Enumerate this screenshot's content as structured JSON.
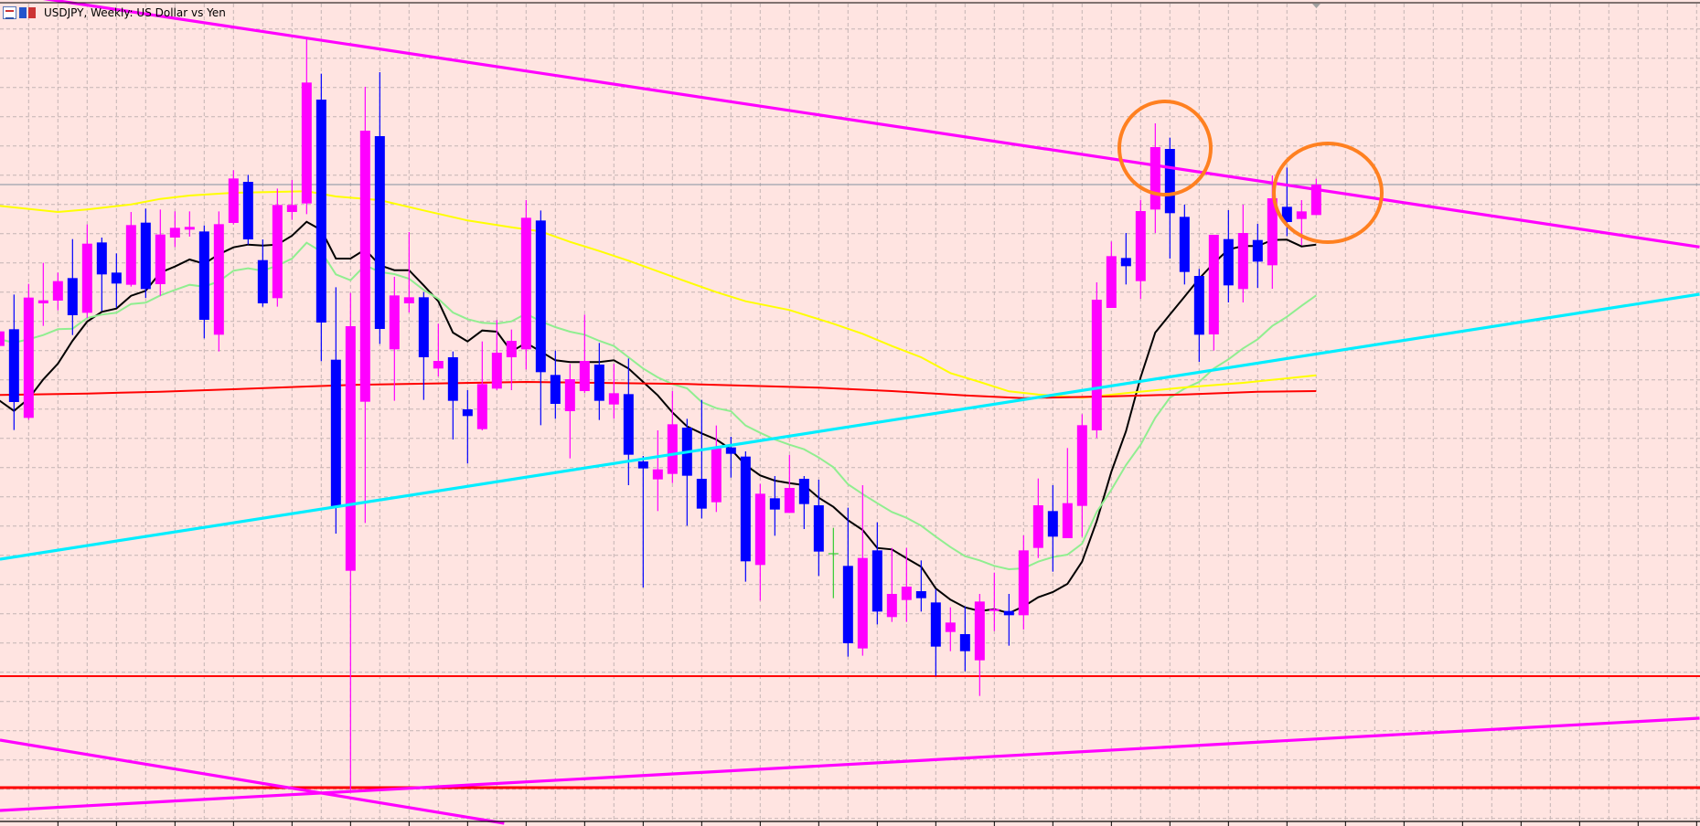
{
  "window": {
    "title": "USDJPY, Weekly:  US Dollar vs Yen",
    "icons": [
      "chart-window-icon",
      "books-icon"
    ]
  },
  "colors": {
    "background": "#ffe4e1",
    "grid": "#c4b4b4",
    "bull_candle": "#ff00ff",
    "bear_candle": "#0000ff",
    "doji_candle": "#32cd32",
    "upper_trendline": "#ff00ff",
    "cyan_trendline": "#00eeff",
    "support_line": "#ff0000",
    "current_price_line": "#8090a0",
    "annotation": "#ff8020"
  },
  "chart_data": {
    "type": "candlestick",
    "symbol": "USDJPY",
    "timeframe": "Weekly",
    "title": "USDJPY, Weekly:  US Dollar vs Yen",
    "grid": true,
    "x_index_start": -1,
    "candles_ohlc": [
      [
        151.64,
        152.21,
        151.58,
        152.12
      ],
      [
        152.19,
        153.33,
        148.88,
        149.8
      ],
      [
        149.28,
        153.68,
        149.22,
        153.23
      ],
      [
        153.04,
        154.37,
        152.3,
        153.14
      ],
      [
        153.13,
        154.05,
        152.81,
        153.77
      ],
      [
        153.87,
        155.15,
        152.0,
        152.65
      ],
      [
        152.73,
        155.63,
        152.56,
        155.0
      ],
      [
        155.04,
        155.2,
        152.79,
        153.99
      ],
      [
        154.05,
        154.68,
        152.9,
        153.69
      ],
      [
        153.65,
        156.04,
        153.59,
        155.61
      ],
      [
        155.69,
        156.15,
        153.22,
        153.51
      ],
      [
        153.67,
        156.12,
        153.29,
        155.3
      ],
      [
        155.2,
        156.06,
        154.89,
        155.52
      ],
      [
        155.46,
        156.06,
        155.23,
        155.55
      ],
      [
        155.4,
        155.6,
        151.89,
        152.5
      ],
      [
        152.01,
        156.06,
        151.46,
        155.64
      ],
      [
        155.68,
        157.41,
        155.63,
        157.14
      ],
      [
        157.03,
        157.26,
        154.97,
        155.14
      ],
      [
        154.46,
        155.14,
        152.93,
        153.04
      ],
      [
        153.21,
        156.81,
        152.93,
        156.27
      ],
      [
        156.04,
        157.09,
        155.78,
        156.27
      ],
      [
        156.32,
        161.76,
        155.97,
        160.29
      ],
      [
        159.73,
        160.58,
        151.14,
        152.41
      ],
      [
        151.19,
        153.57,
        145.48,
        146.35
      ],
      [
        144.26,
        153.38,
        137.02,
        152.29
      ],
      [
        149.81,
        160.15,
        145.83,
        158.71
      ],
      [
        158.53,
        160.63,
        151.71,
        152.2
      ],
      [
        151.53,
        153.91,
        149.84,
        153.3
      ],
      [
        153.04,
        155.38,
        152.74,
        153.24
      ],
      [
        153.24,
        153.41,
        149.87,
        151.27
      ],
      [
        150.9,
        152.37,
        150.64,
        151.15
      ],
      [
        151.27,
        151.46,
        148.57,
        149.84
      ],
      [
        149.56,
        150.19,
        147.78,
        149.34
      ],
      [
        148.91,
        151.79,
        148.87,
        150.39
      ],
      [
        150.24,
        152.49,
        150.19,
        151.42
      ],
      [
        151.27,
        152.18,
        150.19,
        151.81
      ],
      [
        151.53,
        156.43,
        150.87,
        155.85
      ],
      [
        155.76,
        156.09,
        149.04,
        150.78
      ],
      [
        150.69,
        151.49,
        149.25,
        149.74
      ],
      [
        149.5,
        151.05,
        147.95,
        150.55
      ],
      [
        150.16,
        152.67,
        150.09,
        151.15
      ],
      [
        151.03,
        151.74,
        149.21,
        149.84
      ],
      [
        149.72,
        151.05,
        149.25,
        150.09
      ],
      [
        150.06,
        151.23,
        147.07,
        148.07
      ],
      [
        147.85,
        148.03,
        143.71,
        147.62
      ],
      [
        147.26,
        148.87,
        146.22,
        147.59
      ],
      [
        147.44,
        150.16,
        147.14,
        149.07
      ],
      [
        148.96,
        149.25,
        145.74,
        147.38
      ],
      [
        147.28,
        149.87,
        145.98,
        146.3
      ],
      [
        146.51,
        149.03,
        146.19,
        148.28
      ],
      [
        148.31,
        148.66,
        147.32,
        148.1
      ],
      [
        148.01,
        148.18,
        143.9,
        144.57
      ],
      [
        144.45,
        147.11,
        143.28,
        146.79
      ],
      [
        146.64,
        147.37,
        145.41,
        146.27
      ],
      [
        146.16,
        148.06,
        146.16,
        146.98
      ],
      [
        147.28,
        147.37,
        145.63,
        146.45
      ],
      [
        146.41,
        147.25,
        144.09,
        144.89
      ],
      [
        144.82,
        145.67,
        143.36,
        144.82
      ],
      [
        144.42,
        146.33,
        141.44,
        141.88
      ],
      [
        141.71,
        147.07,
        141.47,
        144.68
      ],
      [
        144.93,
        145.85,
        142.5,
        142.92
      ],
      [
        142.74,
        145.01,
        142.58,
        143.5
      ],
      [
        143.3,
        145.01,
        142.58,
        143.74
      ],
      [
        143.59,
        144.6,
        142.92,
        143.36
      ],
      [
        143.22,
        143.65,
        140.81,
        141.77
      ],
      [
        142.25,
        143.06,
        141.62,
        142.56
      ],
      [
        142.18,
        143.09,
        140.96,
        141.62
      ],
      [
        141.32,
        143.5,
        140.15,
        143.25
      ],
      [
        142.94,
        144.2,
        142.28,
        143.0
      ],
      [
        142.94,
        143.5,
        141.8,
        142.8
      ],
      [
        142.8,
        145.42,
        142.33,
        144.93
      ],
      [
        145.01,
        147.29,
        144.68,
        146.41
      ],
      [
        146.22,
        147.07,
        144.23,
        145.38
      ],
      [
        145.33,
        148.29,
        145.33,
        146.48
      ],
      [
        146.39,
        149.4,
        145.38,
        149.04
      ],
      [
        148.87,
        153.73,
        148.62,
        153.16
      ],
      [
        152.89,
        155.07,
        152.89,
        154.59
      ],
      [
        154.53,
        155.35,
        153.66,
        154.26
      ],
      [
        153.77,
        156.44,
        153.19,
        156.07
      ],
      [
        156.12,
        158.95,
        155.35,
        158.17
      ],
      [
        158.11,
        158.48,
        154.51,
        156.0
      ],
      [
        155.88,
        156.28,
        153.66,
        154.07
      ],
      [
        153.94,
        154.17,
        151.12,
        152.01
      ],
      [
        152.02,
        155.29,
        151.49,
        155.29
      ],
      [
        155.15,
        156.1,
        153.07,
        153.63
      ],
      [
        153.51,
        156.28,
        153.07,
        155.35
      ],
      [
        155.12,
        155.65,
        153.55,
        154.41
      ],
      [
        154.29,
        157.24,
        153.52,
        156.49
      ],
      [
        156.21,
        157.5,
        155.25,
        155.71
      ],
      [
        155.81,
        156.43,
        154.95,
        156.06
      ],
      [
        155.94,
        157.13,
        155.94,
        156.94
      ]
    ],
    "moving_averages": [
      {
        "color": "#000000",
        "values": [
          149.85,
          149.51,
          149.91,
          150.54,
          151.06,
          151.81,
          152.44,
          152.76,
          152.87,
          153.29,
          153.45,
          154.05,
          154.25,
          154.48,
          154.34,
          154.65,
          154.88,
          154.97,
          154.94,
          154.97,
          155.26,
          155.72,
          155.45,
          154.51,
          154.51,
          154.81,
          154.29,
          154.13,
          154.13,
          153.63,
          153.11,
          152.08,
          151.79,
          152.15,
          152.11,
          151.46,
          151.74,
          151.46,
          151.17,
          151.11,
          151.11,
          151.11,
          151.17,
          150.9,
          150.46,
          150.02,
          149.46,
          149.0,
          148.77,
          148.57,
          148.25,
          147.73,
          147.39,
          147.22,
          147.14,
          147.07,
          146.66,
          146.36,
          145.92,
          145.6,
          145.01,
          144.96,
          144.67,
          144.39,
          143.68,
          143.31,
          143.06,
          142.94,
          143.0,
          142.87,
          143.09,
          143.39,
          143.56,
          143.83,
          144.56,
          145.89,
          147.51,
          148.84,
          150.61,
          152.08,
          152.67,
          153.26,
          153.85,
          154.36,
          154.81,
          154.92,
          154.92,
          155.12,
          155.13,
          154.91,
          154.97
        ]
      },
      {
        "color": "#90ee90",
        "values": [
          151.86,
          151.75,
          151.86,
          152.0,
          152.19,
          152.21,
          152.56,
          152.67,
          152.73,
          153.02,
          153.06,
          153.3,
          153.48,
          153.65,
          153.59,
          153.76,
          154.11,
          154.19,
          154.11,
          154.28,
          154.51,
          155.03,
          154.74,
          153.99,
          153.8,
          154.29,
          154.07,
          154.0,
          153.85,
          153.48,
          153.19,
          152.74,
          152.52,
          152.4,
          152.37,
          152.45,
          152.7,
          152.45,
          152.26,
          152.11,
          152.01,
          151.81,
          151.64,
          151.27,
          150.9,
          150.61,
          150.39,
          150.25,
          149.8,
          149.6,
          149.5,
          149.03,
          148.79,
          148.57,
          148.4,
          148.25,
          147.98,
          147.66,
          147.1,
          146.78,
          146.48,
          146.19,
          146.0,
          145.74,
          145.38,
          145.04,
          144.74,
          144.6,
          144.42,
          144.31,
          144.34,
          144.56,
          144.71,
          144.79,
          145.15,
          146.19,
          146.92,
          147.73,
          148.4,
          149.28,
          149.94,
          150.24,
          150.46,
          150.9,
          151.2,
          151.56,
          151.86,
          152.3,
          152.6,
          152.96,
          153.3
        ]
      },
      {
        "color": "#ffff00",
        "points": [
          [
            -1,
            156.24
          ],
          [
            3,
            156.04
          ],
          [
            5,
            156.12
          ],
          [
            8,
            156.29
          ],
          [
            10,
            156.47
          ],
          [
            12,
            156.58
          ],
          [
            15,
            156.67
          ],
          [
            18,
            156.7
          ],
          [
            20,
            156.72
          ],
          [
            22,
            156.55
          ],
          [
            25,
            156.43
          ],
          [
            28,
            156.09
          ],
          [
            31,
            155.76
          ],
          [
            34,
            155.54
          ],
          [
            36,
            155.4
          ],
          [
            38,
            155.06
          ],
          [
            40,
            154.76
          ],
          [
            42,
            154.44
          ],
          [
            45,
            153.92
          ],
          [
            48,
            153.41
          ],
          [
            50,
            153.11
          ],
          [
            53,
            152.82
          ],
          [
            56,
            152.37
          ],
          [
            58,
            152.04
          ],
          [
            60,
            151.64
          ],
          [
            62,
            151.27
          ],
          [
            64,
            150.75
          ],
          [
            66,
            150.46
          ],
          [
            68,
            150.15
          ],
          [
            70,
            150.05
          ],
          [
            73,
            149.94
          ],
          [
            76,
            150.09
          ],
          [
            80,
            150.28
          ],
          [
            84,
            150.43
          ],
          [
            89,
            150.68
          ]
        ]
      },
      {
        "color": "#ff0000",
        "points": [
          [
            -1,
            150.03
          ],
          [
            5,
            150.08
          ],
          [
            10,
            150.14
          ],
          [
            15,
            150.22
          ],
          [
            20,
            150.31
          ],
          [
            23,
            150.36
          ],
          [
            35,
            150.46
          ],
          [
            46,
            150.39
          ],
          [
            55,
            150.27
          ],
          [
            60,
            150.16
          ],
          [
            65,
            150.02
          ],
          [
            69,
            149.93
          ],
          [
            75,
            149.99
          ],
          [
            80,
            150.05
          ],
          [
            85,
            150.14
          ],
          [
            89,
            150.16
          ]
        ]
      }
    ],
    "trendlines": [
      {
        "color": "#ff00ff",
        "from": [
          -0.96,
          163.26
        ],
        "to": [
          115.2,
          154.89
        ]
      },
      {
        "color": "#00eeff",
        "from": [
          -0.96,
          144.64
        ],
        "to": [
          115.2,
          153.34
        ]
      },
      {
        "color": "#ff00ff",
        "from": [
          -0.96,
          136.39
        ],
        "to": [
          115.2,
          139.42
        ]
      },
      {
        "color": "#ff00ff",
        "from": [
          -0.96,
          138.7
        ],
        "to": [
          33.5,
          135.97
        ]
      }
    ],
    "horizontal_lines": [
      {
        "color": "#ff0000",
        "price": 140.8
      },
      {
        "color": "#ff0000",
        "price": 137.14
      },
      {
        "color": "#8090a0",
        "price": 156.94
      }
    ],
    "annotations": [
      {
        "shape": "ellipse",
        "color": "#ff8020",
        "around_candles": [
          78,
          79
        ]
      },
      {
        "shape": "ellipse",
        "color": "#ff8020",
        "around_candles": [
          87,
          89
        ]
      }
    ]
  }
}
